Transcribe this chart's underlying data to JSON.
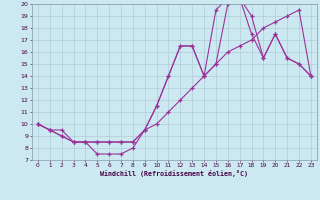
{
  "xlabel": "Windchill (Refroidissement éolien,°C)",
  "bg_color": "#cce8f0",
  "line_color": "#993399",
  "grid_color": "#aaccdd",
  "xlim": [
    -0.5,
    23.5
  ],
  "ylim": [
    7,
    20
  ],
  "xticks": [
    0,
    1,
    2,
    3,
    4,
    5,
    6,
    7,
    8,
    9,
    10,
    11,
    12,
    13,
    14,
    15,
    16,
    17,
    18,
    19,
    20,
    21,
    22,
    23
  ],
  "yticks": [
    7,
    8,
    9,
    10,
    11,
    12,
    13,
    14,
    15,
    16,
    17,
    18,
    19,
    20
  ],
  "line1_x": [
    0,
    1,
    2,
    3,
    4,
    5,
    6,
    7,
    8,
    9,
    10,
    11,
    12,
    13,
    14,
    15,
    16,
    17,
    18,
    19,
    20,
    21,
    22,
    23
  ],
  "line1_y": [
    10,
    9.5,
    9,
    8.5,
    8.5,
    7.5,
    7.5,
    7.5,
    8.0,
    9.5,
    11.5,
    14,
    16.5,
    16.5,
    14.0,
    19.5,
    20.5,
    20.5,
    19.0,
    15.5,
    17.5,
    15.5,
    15,
    14
  ],
  "line2_x": [
    0,
    1,
    2,
    3,
    4,
    5,
    6,
    7,
    8,
    9,
    10,
    11,
    12,
    13,
    14,
    15,
    16,
    17,
    18,
    19,
    20,
    21,
    22,
    23
  ],
  "line2_y": [
    10,
    9.5,
    9.5,
    8.5,
    8.5,
    8.5,
    8.5,
    8.5,
    8.5,
    9.5,
    11.5,
    14.0,
    16.5,
    16.5,
    14.0,
    15.0,
    20.0,
    20.5,
    17.5,
    15.5,
    17.5,
    15.5,
    15,
    14
  ],
  "line3_x": [
    0,
    1,
    2,
    3,
    4,
    5,
    6,
    7,
    8,
    9,
    10,
    11,
    12,
    13,
    14,
    15,
    16,
    17,
    18,
    19,
    20,
    21,
    22,
    23
  ],
  "line3_y": [
    10,
    9.5,
    9,
    8.5,
    8.5,
    8.5,
    8.5,
    8.5,
    8.5,
    9.5,
    10,
    11,
    12,
    13,
    14,
    15,
    16,
    16.5,
    17,
    18,
    18.5,
    19,
    19.5,
    14
  ]
}
